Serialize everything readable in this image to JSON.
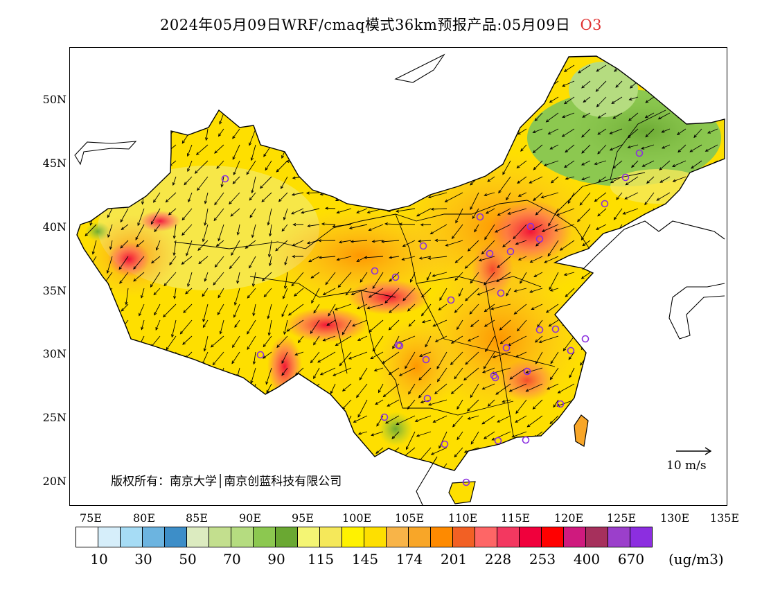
{
  "title": {
    "text": "2024年05月09日WRF/cmaq模式36km预报产品:05月09日",
    "species": "O3"
  },
  "axes": {
    "lat_labels": [
      "50N",
      "45N",
      "40N",
      "35N",
      "30N",
      "25N",
      "20N"
    ],
    "lon_labels": [
      "75E",
      "80E",
      "85E",
      "90E",
      "95E",
      "100E",
      "105E",
      "110E",
      "115E",
      "120E",
      "125E",
      "130E",
      "135E"
    ]
  },
  "copyright": "版权所有：南京大学│南京创蓝科技有限公司",
  "wind_reference": "10 m/s",
  "colorbar": {
    "colors": [
      "#ffffff",
      "#d6eefa",
      "#a6dcf5",
      "#6cb4e0",
      "#3d8ec8",
      "#dcebc0",
      "#c3df8e",
      "#b5dc80",
      "#8cc850",
      "#6aa832",
      "#f4f574",
      "#f5e85a",
      "#fff200",
      "#fedf00",
      "#f8b448",
      "#f8a628",
      "#fe8a00",
      "#f26024",
      "#fe6666",
      "#f33860",
      "#f0003c",
      "#ff0000",
      "#cf1a7e",
      "#a6305c",
      "#9b3fcb",
      "#8c2ee0"
    ],
    "labels": [
      "10",
      "30",
      "50",
      "70",
      "90",
      "115",
      "145",
      "174",
      "201",
      "228",
      "253",
      "400",
      "670"
    ],
    "unit": "(ug/m3)"
  }
}
